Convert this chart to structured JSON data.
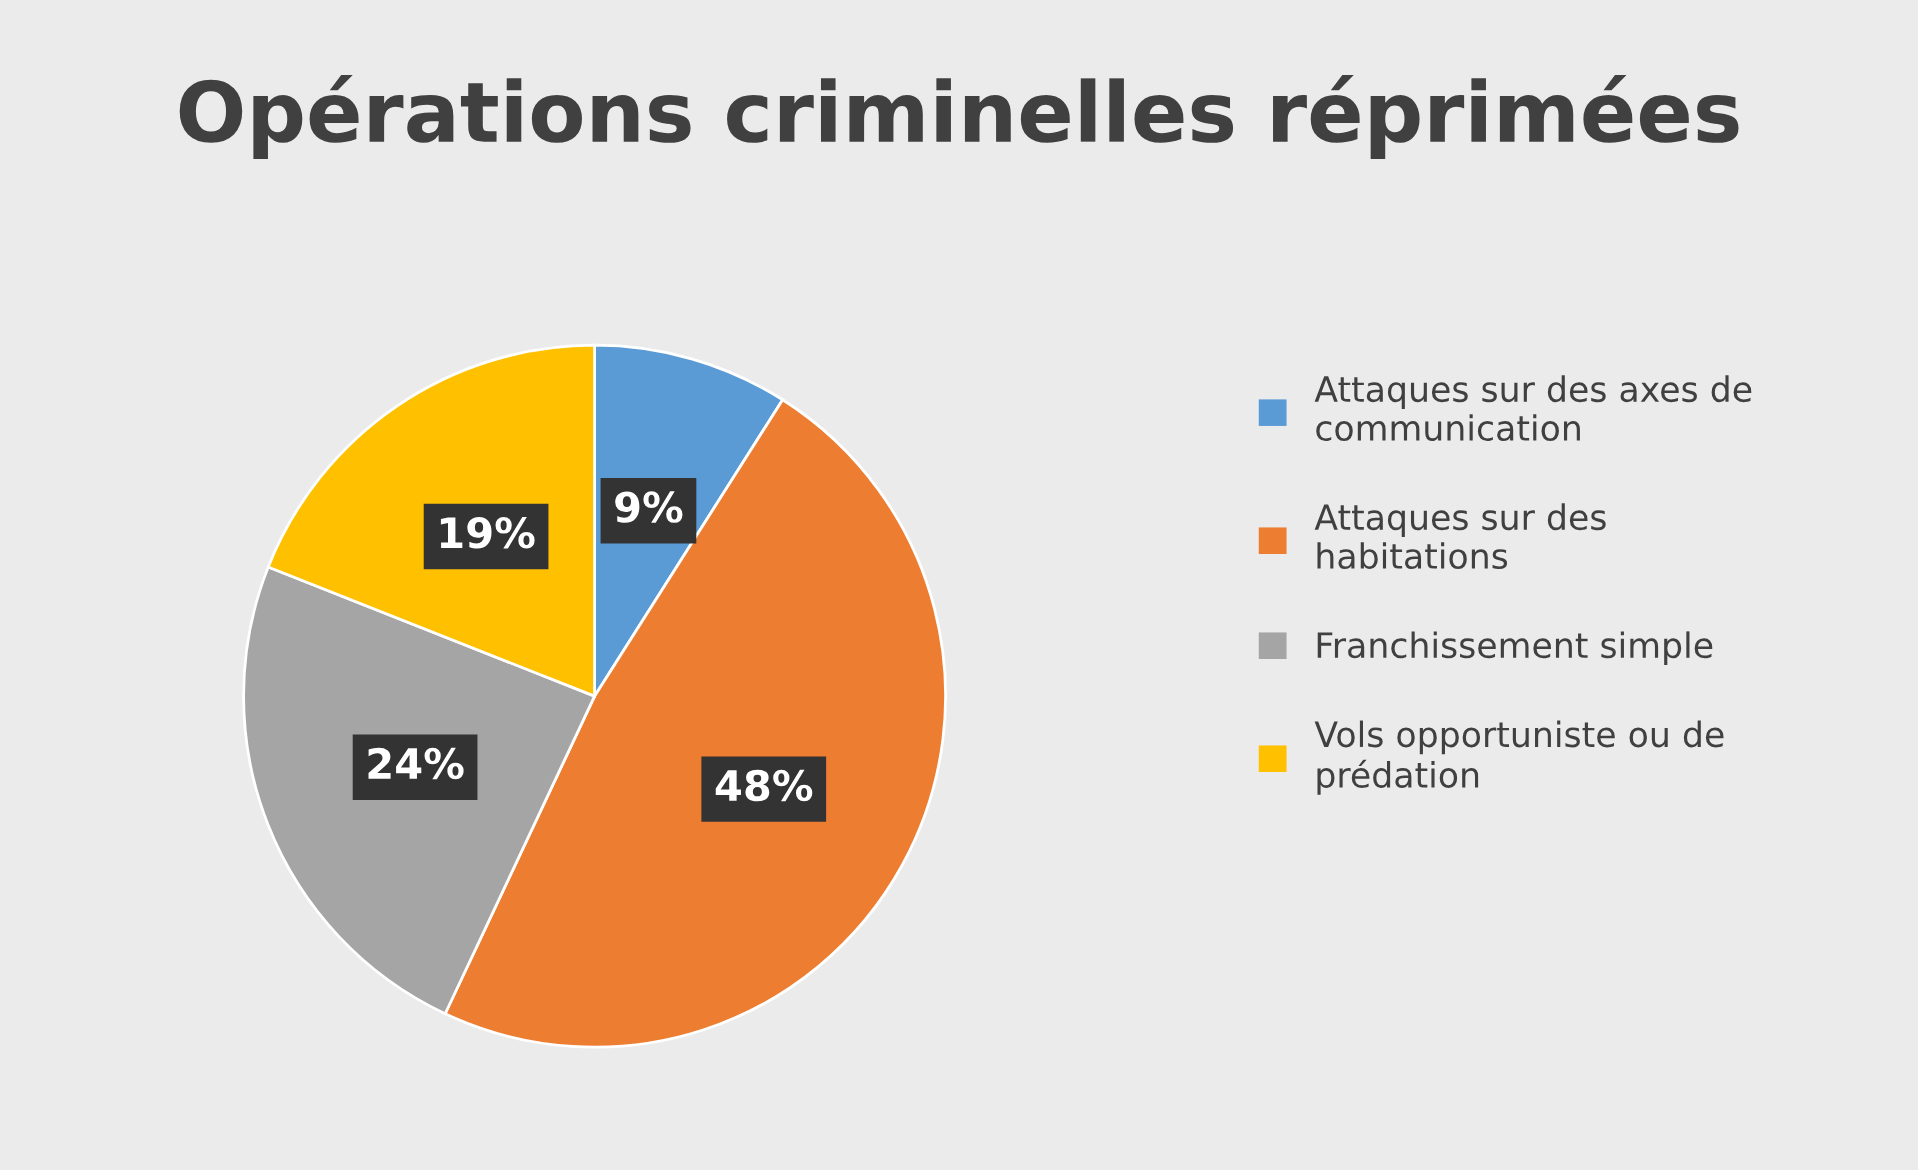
{
  "chart_data": {
    "type": "pie",
    "title": "Opérations criminelles réprimées",
    "categories": [
      "Attaques sur des axes de communication",
      "Attaques sur des habitations",
      "Franchissement simple",
      "Vols opportuniste ou de prédation"
    ],
    "values": [
      9,
      48,
      24,
      19
    ],
    "colors": [
      "#5b9bd5",
      "#ed7d31",
      "#a5a5a5",
      "#ffc000"
    ],
    "value_labels": [
      "9%",
      "48%",
      "24%",
      "19%"
    ],
    "legend": "right"
  }
}
